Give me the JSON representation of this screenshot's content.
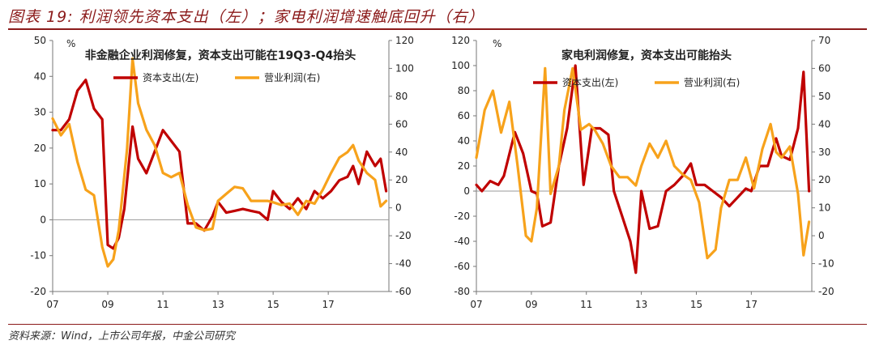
{
  "header": {
    "title": "图表 19: 利润领先资本支出（左）；家电利润增速触底回升（右）"
  },
  "footer": {
    "source": "资料来源：Wind，上市公司年报，中金公司研究"
  },
  "colors": {
    "capex": "#C00000",
    "profit": "#F7A21B",
    "accent": "#8B1A1A"
  },
  "chart_data": [
    {
      "type": "line",
      "title": "非金融企业利润修复，资本支出可能在19Q3-Q4抬头",
      "unit": "%",
      "xlim": [
        2007.0,
        2019.2
      ],
      "x_ticks": [
        {
          "value": 2007,
          "label": "07"
        },
        {
          "value": 2009,
          "label": "09"
        },
        {
          "value": 2011,
          "label": "11"
        },
        {
          "value": 2013,
          "label": "13"
        },
        {
          "value": 2015,
          "label": "15"
        },
        {
          "value": 2017,
          "label": "17"
        }
      ],
      "y_left": {
        "min": -20,
        "max": 50,
        "ticks": [
          -20,
          -10,
          0,
          10,
          20,
          30,
          40,
          50
        ]
      },
      "y_right": {
        "min": -60,
        "max": 120,
        "ticks": [
          -60,
          -40,
          -20,
          0,
          20,
          40,
          60,
          80,
          100,
          120
        ]
      },
      "series": [
        {
          "name": "资本支出(左)",
          "axis": "left",
          "color": "#C00000",
          "x": [
            2007.0,
            2007.3,
            2007.6,
            2007.9,
            2008.2,
            2008.5,
            2008.8,
            2009.0,
            2009.2,
            2009.4,
            2009.6,
            2009.9,
            2010.1,
            2010.4,
            2010.7,
            2011.0,
            2011.3,
            2011.6,
            2011.9,
            2012.2,
            2012.5,
            2012.8,
            2013.0,
            2013.3,
            2013.6,
            2013.9,
            2014.2,
            2014.5,
            2014.8,
            2015.0,
            2015.3,
            2015.6,
            2015.9,
            2016.2,
            2016.5,
            2016.8,
            2017.1,
            2017.4,
            2017.7,
            2017.9,
            2018.1,
            2018.4,
            2018.7,
            2018.9,
            2019.1
          ],
          "y": [
            25,
            25,
            28,
            36,
            39,
            31,
            28,
            -7,
            -8,
            -5,
            3,
            26,
            17,
            13,
            19,
            25,
            22,
            19,
            -1,
            -1,
            -3,
            1,
            5,
            2,
            2.5,
            3,
            2.5,
            2,
            0,
            8,
            5,
            3,
            6,
            3,
            8,
            6,
            8,
            11,
            12,
            15,
            10,
            19,
            15,
            17,
            8
          ]
        },
        {
          "name": "营业利润(右)",
          "axis": "right",
          "color": "#F7A21B",
          "x": [
            2007.0,
            2007.3,
            2007.6,
            2007.9,
            2008.2,
            2008.5,
            2008.8,
            2009.0,
            2009.2,
            2009.4,
            2009.7,
            2009.9,
            2010.1,
            2010.4,
            2010.7,
            2011.0,
            2011.3,
            2011.6,
            2011.9,
            2012.2,
            2012.5,
            2012.8,
            2013.0,
            2013.3,
            2013.6,
            2013.9,
            2014.2,
            2014.5,
            2014.8,
            2015.0,
            2015.3,
            2015.6,
            2015.9,
            2016.2,
            2016.5,
            2016.8,
            2017.1,
            2017.4,
            2017.7,
            2017.9,
            2018.1,
            2018.4,
            2018.7,
            2018.9,
            2019.1
          ],
          "y": [
            64,
            52,
            60,
            33,
            13,
            9,
            -28,
            -42,
            -37,
            -16,
            42,
            107,
            75,
            56,
            45,
            25,
            22,
            25,
            2,
            -14,
            -16,
            -15,
            5,
            10,
            15,
            14,
            5,
            5,
            5,
            4,
            2,
            3,
            -5,
            5,
            3,
            13,
            25,
            36,
            40,
            45,
            34,
            25,
            20,
            1,
            5
          ]
        }
      ],
      "legend": {
        "placement": "top",
        "entries": [
          "资本支出(左)",
          "营业利润(右)"
        ]
      }
    },
    {
      "type": "line",
      "title": "家电利润修复，资本支出可能抬头",
      "unit": "%",
      "xlim": [
        2007.0,
        2019.2
      ],
      "x_ticks": [
        {
          "value": 2007,
          "label": "07"
        },
        {
          "value": 2009,
          "label": "09"
        },
        {
          "value": 2011,
          "label": "11"
        },
        {
          "value": 2013,
          "label": "13"
        },
        {
          "value": 2015,
          "label": "15"
        },
        {
          "value": 2017,
          "label": "17"
        }
      ],
      "y_left": {
        "min": -80,
        "max": 120,
        "ticks": [
          -80,
          -60,
          -40,
          -20,
          0,
          20,
          40,
          60,
          80,
          100,
          120
        ]
      },
      "y_right": {
        "min": -20,
        "max": 70,
        "ticks": [
          -20,
          -10,
          0,
          10,
          20,
          30,
          40,
          50,
          60,
          70
        ]
      },
      "series": [
        {
          "name": "资本支出(左)",
          "axis": "left",
          "color": "#C00000",
          "x": [
            2007.0,
            2007.2,
            2007.5,
            2007.8,
            2008.0,
            2008.4,
            2008.7,
            2009.0,
            2009.2,
            2009.4,
            2009.7,
            2010.0,
            2010.3,
            2010.6,
            2010.9,
            2011.2,
            2011.5,
            2011.8,
            2012.0,
            2012.3,
            2012.6,
            2012.8,
            2013.0,
            2013.3,
            2013.6,
            2013.9,
            2014.2,
            2014.5,
            2014.8,
            2015.0,
            2015.3,
            2015.6,
            2015.9,
            2016.2,
            2016.5,
            2016.8,
            2017.0,
            2017.3,
            2017.6,
            2017.9,
            2018.1,
            2018.4,
            2018.7,
            2018.9,
            2019.1
          ],
          "y": [
            5,
            0,
            8,
            5,
            12,
            47,
            30,
            0,
            -2,
            -28,
            -25,
            20,
            50,
            100,
            5,
            50,
            50,
            45,
            0,
            -20,
            -40,
            -65,
            0,
            -30,
            -28,
            0,
            5,
            12,
            22,
            5,
            5,
            0,
            -5,
            -12,
            -5,
            2,
            0,
            20,
            20,
            42,
            28,
            25,
            50,
            95,
            0
          ]
        },
        {
          "name": "营业利润(右)",
          "axis": "right",
          "color": "#F7A21B",
          "x": [
            2007.0,
            2007.3,
            2007.6,
            2007.9,
            2008.2,
            2008.5,
            2008.8,
            2009.0,
            2009.2,
            2009.5,
            2009.7,
            2010.0,
            2010.2,
            2010.5,
            2010.8,
            2011.1,
            2011.3,
            2011.6,
            2011.9,
            2012.2,
            2012.5,
            2012.8,
            2013.0,
            2013.3,
            2013.6,
            2013.9,
            2014.2,
            2014.5,
            2014.8,
            2015.1,
            2015.4,
            2015.7,
            2015.9,
            2016.2,
            2016.5,
            2016.8,
            2017.1,
            2017.4,
            2017.7,
            2017.9,
            2018.1,
            2018.4,
            2018.7,
            2018.9,
            2019.1
          ],
          "y": [
            28,
            45,
            52,
            37,
            48,
            25,
            0,
            -2,
            10,
            60,
            15,
            25,
            45,
            60,
            38,
            40,
            38,
            33,
            25,
            21,
            21,
            18,
            25,
            33,
            28,
            34,
            25,
            22,
            20,
            12,
            -8,
            -5,
            10,
            20,
            20,
            28,
            17,
            31,
            40,
            30,
            28,
            32,
            15,
            -7,
            5
          ]
        }
      ],
      "legend": {
        "placement": "top",
        "entries": [
          "资本支出(左)",
          "营业利润(右)"
        ]
      }
    }
  ]
}
